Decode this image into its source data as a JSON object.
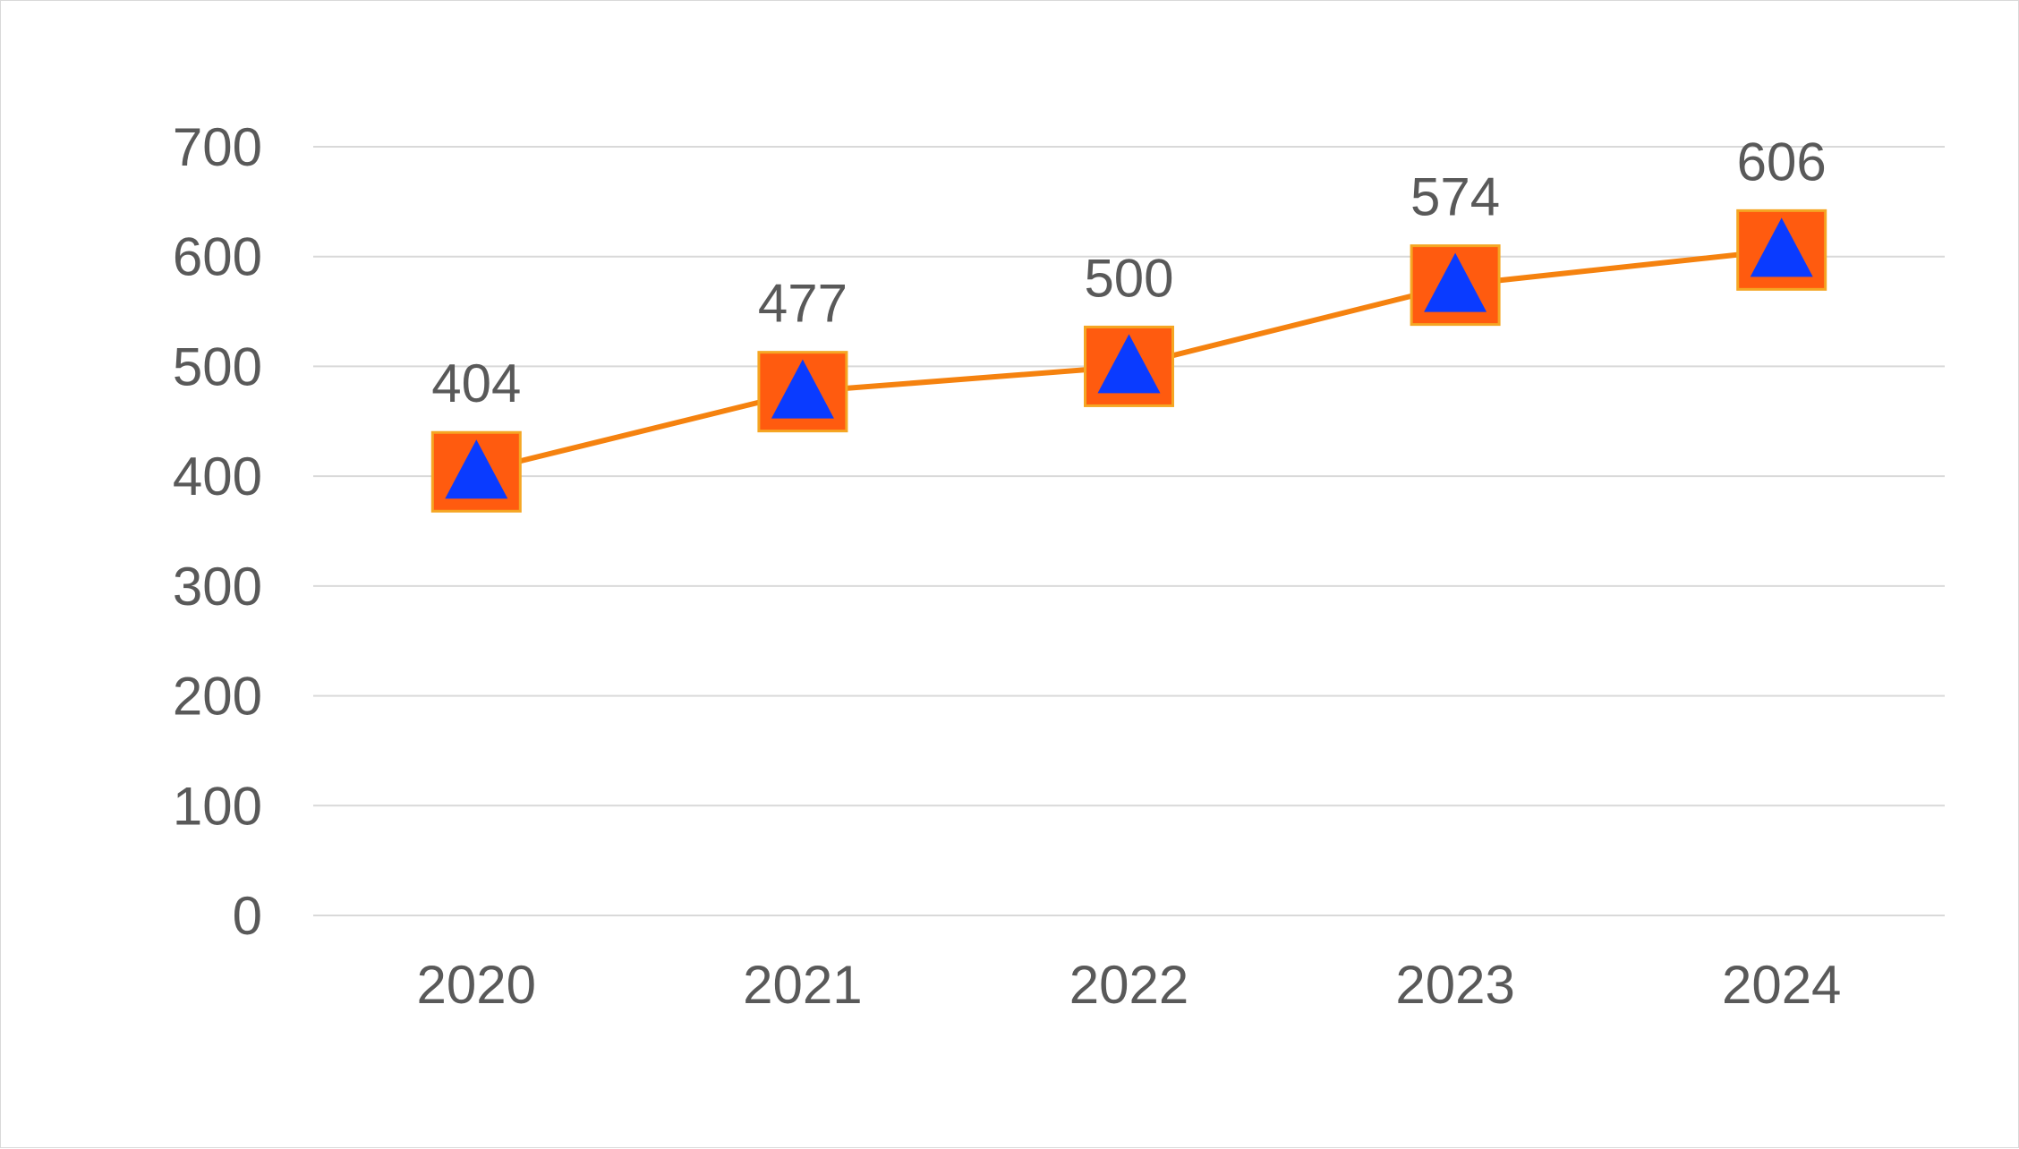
{
  "chart_data": {
    "type": "line",
    "categories": [
      "2020",
      "2021",
      "2022",
      "2023",
      "2024"
    ],
    "series": [
      {
        "values": [
          404,
          477,
          500,
          574,
          606
        ]
      }
    ],
    "ylim": [
      0,
      700
    ],
    "y_ticks": [
      0,
      100,
      200,
      300,
      400,
      500,
      600,
      700
    ],
    "grid": true,
    "legend": "none",
    "data_labels": true,
    "colors": {
      "line": "#f5820f",
      "marker_fill": "#ff5b0f",
      "marker_border": "#f5a623",
      "marker_symbol": "#0a3bff",
      "grid": "#d9d9d9",
      "text": "#595959"
    },
    "marker_icon": "triangle-on-square-icon"
  }
}
